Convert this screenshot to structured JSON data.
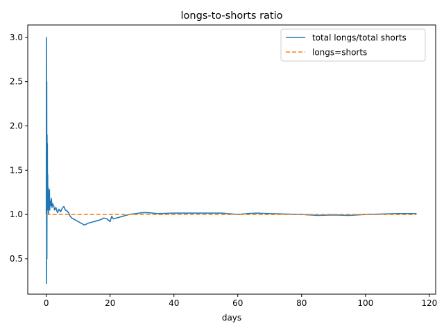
{
  "chart_data": {
    "type": "line",
    "title": "longs-to-shorts ratio",
    "xlabel": "days",
    "ylabel": "",
    "xlim": [
      -5.8,
      122.0
    ],
    "ylim": [
      0.1,
      3.14
    ],
    "xticks": [
      0,
      20,
      40,
      60,
      80,
      100,
      120
    ],
    "yticks": [
      0.5,
      1.0,
      1.5,
      2.0,
      2.5,
      3.0
    ],
    "xtick_labels": [
      "0",
      "20",
      "40",
      "60",
      "80",
      "100",
      "120"
    ],
    "ytick_labels": [
      "0.5",
      "1.0",
      "1.5",
      "2.0",
      "2.5",
      "3.0"
    ],
    "grid": false,
    "legend_position": "top-right",
    "series": [
      {
        "name": "total longs/total shorts",
        "color": "#1f77b4",
        "style": "solid",
        "x": [
          0,
          0.05,
          0.1,
          0.15,
          0.2,
          0.25,
          0.3,
          0.35,
          0.4,
          0.45,
          0.5,
          0.6,
          0.7,
          0.8,
          0.9,
          1.0,
          1.1,
          1.2,
          1.4,
          1.6,
          1.8,
          2.0,
          2.3,
          2.6,
          3.0,
          3.5,
          4.0,
          4.5,
          5.0,
          5.5,
          6.0,
          6.5,
          7.0,
          7.5,
          8.0,
          9.0,
          10.0,
          11.0,
          12.0,
          13.0,
          14.0,
          15.0,
          16.0,
          17.0,
          18.0,
          19.0,
          20.0,
          20.5,
          21.0,
          22.0,
          23.0,
          24.0,
          25.0,
          26.0,
          28.0,
          30.0,
          32.0,
          35.0,
          40.0,
          45.0,
          50.0,
          55.0,
          60.0,
          63.0,
          66.0,
          70.0,
          75.0,
          80.0,
          85.0,
          90.0,
          95.0,
          100.0,
          105.0,
          110.0,
          116.0
        ],
        "y": [
          1.0,
          3.0,
          0.22,
          2.5,
          0.5,
          1.9,
          1.2,
          1.8,
          1.05,
          1.45,
          1.1,
          1.3,
          1.0,
          1.2,
          1.12,
          1.28,
          1.05,
          1.15,
          1.1,
          1.18,
          1.08,
          1.12,
          1.1,
          1.05,
          1.08,
          1.02,
          1.06,
          1.03,
          1.07,
          1.09,
          1.05,
          1.04,
          1.02,
          0.98,
          0.96,
          0.94,
          0.92,
          0.9,
          0.88,
          0.9,
          0.91,
          0.92,
          0.93,
          0.94,
          0.96,
          0.95,
          0.92,
          0.98,
          0.95,
          0.96,
          0.97,
          0.98,
          0.99,
          1.0,
          1.01,
          1.02,
          1.02,
          1.01,
          1.015,
          1.015,
          1.015,
          1.015,
          1.0,
          1.01,
          1.015,
          1.01,
          1.005,
          1.0,
          0.99,
          0.995,
          0.99,
          1.0,
          1.005,
          1.01,
          1.01
        ]
      },
      {
        "name": "longs=shorts",
        "color": "#ff7f0e",
        "style": "dashed",
        "x": [
          0,
          116
        ],
        "y": [
          1.0,
          1.0
        ]
      }
    ]
  }
}
